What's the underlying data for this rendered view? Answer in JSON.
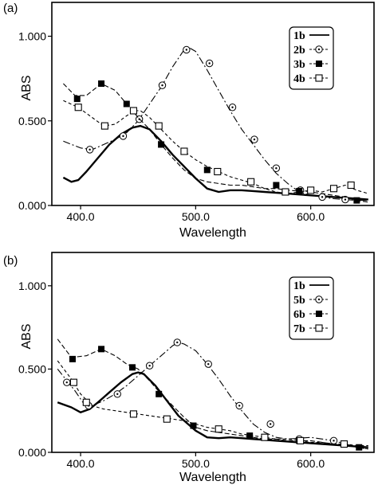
{
  "chart_data": [
    {
      "type": "line",
      "panel_label": "(a)",
      "title": "",
      "xlabel": "Wavelength",
      "ylabel": "ABS",
      "xlim": [
        375,
        655
      ],
      "ylim": [
        0,
        1.2
      ],
      "xticks": [
        400,
        500,
        600
      ],
      "xtick_labels": [
        "400.0",
        "500.0",
        "600.0"
      ],
      "yticks": [
        0,
        0.5,
        1.0
      ],
      "ytick_labels": [
        "0.000",
        "0.500",
        "1.000"
      ],
      "grid": false,
      "legend_position": "top-right",
      "series": [
        {
          "name": "1b",
          "style": "solid-bold",
          "x": [
            385,
            392,
            398,
            405,
            415,
            425,
            435,
            445,
            452,
            460,
            470,
            480,
            490,
            500,
            510,
            520,
            530,
            540,
            550,
            560,
            570,
            580,
            590,
            600,
            610,
            620,
            630,
            640,
            650
          ],
          "y": [
            0.165,
            0.14,
            0.15,
            0.2,
            0.28,
            0.36,
            0.42,
            0.46,
            0.47,
            0.45,
            0.38,
            0.3,
            0.23,
            0.16,
            0.1,
            0.08,
            0.09,
            0.09,
            0.085,
            0.08,
            0.075,
            0.07,
            0.065,
            0.06,
            0.055,
            0.05,
            0.045,
            0.04,
            0.035
          ],
          "marker_x": [],
          "marker_y": []
        },
        {
          "name": "2b",
          "style": "dashdot-circle",
          "x": [
            385,
            400,
            410,
            420,
            430,
            440,
            450,
            460,
            470,
            480,
            490,
            495,
            500,
            510,
            520,
            530,
            540,
            550,
            560,
            570,
            580,
            590,
            600,
            610,
            620,
            630,
            640,
            650
          ],
          "y": [
            0.38,
            0.34,
            0.33,
            0.36,
            0.39,
            0.43,
            0.5,
            0.6,
            0.7,
            0.82,
            0.92,
            0.93,
            0.91,
            0.8,
            0.68,
            0.56,
            0.45,
            0.36,
            0.27,
            0.19,
            0.13,
            0.08,
            0.06,
            0.05,
            0.04,
            0.035,
            0.03,
            0.03
          ],
          "marker_x": [
            408,
            437,
            451,
            471,
            492,
            512,
            532,
            551,
            570,
            591,
            610,
            630
          ],
          "marker_y": [
            0.33,
            0.41,
            0.51,
            0.71,
            0.92,
            0.84,
            0.58,
            0.39,
            0.22,
            0.09,
            0.05,
            0.035
          ]
        },
        {
          "name": "3b",
          "style": "dashed-filled-square",
          "x": [
            385,
            395,
            405,
            418,
            430,
            440,
            450,
            460,
            470,
            480,
            490,
            500,
            510,
            520,
            530,
            540,
            550,
            560,
            570,
            580,
            590,
            600,
            610,
            620,
            630,
            640,
            650
          ],
          "y": [
            0.72,
            0.65,
            0.65,
            0.72,
            0.68,
            0.6,
            0.52,
            0.45,
            0.36,
            0.28,
            0.21,
            0.16,
            0.14,
            0.13,
            0.12,
            0.12,
            0.11,
            0.1,
            0.1,
            0.09,
            0.085,
            0.08,
            0.07,
            0.06,
            0.05,
            0.03,
            0.02
          ],
          "marker_x": [
            397,
            418,
            440,
            470,
            510,
            570,
            590,
            640
          ],
          "marker_y": [
            0.63,
            0.72,
            0.6,
            0.36,
            0.21,
            0.12,
            0.085,
            0.03
          ]
        },
        {
          "name": "4b",
          "style": "dashed-open-square",
          "x": [
            385,
            398,
            410,
            420,
            430,
            440,
            447,
            452,
            460,
            470,
            480,
            490,
            500,
            510,
            520,
            530,
            540,
            550,
            560,
            570,
            580,
            590,
            600,
            610,
            620,
            630,
            640,
            650
          ],
          "y": [
            0.62,
            0.58,
            0.52,
            0.47,
            0.48,
            0.53,
            0.56,
            0.56,
            0.52,
            0.45,
            0.38,
            0.32,
            0.27,
            0.23,
            0.2,
            0.17,
            0.15,
            0.13,
            0.1,
            0.08,
            0.07,
            0.08,
            0.09,
            0.08,
            0.1,
            0.12,
            0.09,
            0.07
          ],
          "marker_x": [
            398,
            421,
            446,
            468,
            490,
            519,
            548,
            578,
            600,
            620,
            635
          ],
          "marker_y": [
            0.58,
            0.47,
            0.56,
            0.47,
            0.32,
            0.2,
            0.14,
            0.08,
            0.09,
            0.1,
            0.12
          ]
        }
      ]
    },
    {
      "type": "line",
      "panel_label": "(b)",
      "title": "",
      "xlabel": "Wavelength",
      "ylabel": "ABS",
      "xlim": [
        375,
        655
      ],
      "ylim": [
        0,
        1.2
      ],
      "xticks": [
        400,
        500,
        600
      ],
      "xtick_labels": [
        "400.0",
        "500.0",
        "600.0"
      ],
      "yticks": [
        0,
        0.5,
        1.0
      ],
      "ytick_labels": [
        "0.000",
        "0.500",
        "1.000"
      ],
      "grid": false,
      "legend_position": "top-right",
      "series": [
        {
          "name": "1b",
          "style": "solid-bold",
          "x": [
            380,
            392,
            400,
            408,
            415,
            425,
            435,
            445,
            450,
            455,
            465,
            475,
            485,
            495,
            500,
            510,
            520,
            530,
            540,
            550,
            560,
            570,
            580,
            590,
            600,
            610,
            620,
            630,
            640,
            650
          ],
          "y": [
            0.3,
            0.27,
            0.24,
            0.26,
            0.3,
            0.36,
            0.42,
            0.47,
            0.48,
            0.47,
            0.4,
            0.31,
            0.22,
            0.16,
            0.13,
            0.09,
            0.085,
            0.09,
            0.085,
            0.08,
            0.075,
            0.07,
            0.065,
            0.06,
            0.055,
            0.05,
            0.045,
            0.04,
            0.035,
            0.03
          ],
          "marker_x": [],
          "marker_y": []
        },
        {
          "name": "5b",
          "style": "dashdot-circle",
          "x": [
            380,
            395,
            402,
            410,
            420,
            430,
            440,
            450,
            460,
            470,
            480,
            485,
            490,
            500,
            510,
            520,
            530,
            540,
            550,
            560,
            570,
            580,
            590,
            600,
            610,
            620,
            630,
            640,
            650
          ],
          "y": [
            0.5,
            0.37,
            0.3,
            0.28,
            0.31,
            0.35,
            0.4,
            0.46,
            0.52,
            0.58,
            0.64,
            0.66,
            0.65,
            0.61,
            0.53,
            0.44,
            0.34,
            0.25,
            0.17,
            0.12,
            0.09,
            0.08,
            0.085,
            0.09,
            0.08,
            0.07,
            0.05,
            0.03,
            0.02
          ],
          "marker_x": [
            388,
            407,
            432,
            460,
            484,
            511,
            538,
            565,
            590,
            620
          ],
          "marker_y": [
            0.42,
            0.28,
            0.35,
            0.52,
            0.66,
            0.53,
            0.28,
            0.17,
            0.08,
            0.07
          ]
        },
        {
          "name": "6b",
          "style": "dashed-filled-square",
          "x": [
            380,
            392,
            405,
            418,
            430,
            440,
            450,
            460,
            470,
            480,
            490,
            500,
            510,
            520,
            530,
            540,
            550,
            560,
            570,
            580,
            590,
            600,
            610,
            620,
            630,
            640,
            650
          ],
          "y": [
            0.68,
            0.57,
            0.58,
            0.62,
            0.58,
            0.53,
            0.5,
            0.43,
            0.35,
            0.28,
            0.21,
            0.15,
            0.13,
            0.12,
            0.11,
            0.1,
            0.09,
            0.08,
            0.08,
            0.07,
            0.07,
            0.07,
            0.06,
            0.05,
            0.05,
            0.03,
            0.02
          ],
          "marker_x": [
            393,
            418,
            445,
            468,
            498,
            547,
            590,
            642
          ],
          "marker_y": [
            0.56,
            0.62,
            0.51,
            0.35,
            0.16,
            0.1,
            0.07,
            0.03
          ]
        },
        {
          "name": "7b",
          "style": "dashed-open-square",
          "x": [
            380,
            392,
            400,
            410,
            420,
            430,
            440,
            450,
            460,
            470,
            480,
            490,
            500,
            510,
            520,
            530,
            540,
            550,
            560,
            570,
            580,
            590,
            600,
            610,
            620,
            630,
            640,
            650
          ],
          "y": [
            0.55,
            0.44,
            0.35,
            0.28,
            0.26,
            0.25,
            0.24,
            0.23,
            0.22,
            0.21,
            0.2,
            0.19,
            0.17,
            0.15,
            0.14,
            0.13,
            0.11,
            0.1,
            0.09,
            0.08,
            0.08,
            0.07,
            0.06,
            0.06,
            0.05,
            0.05,
            0.04,
            0.04
          ],
          "marker_x": [
            394,
            405,
            446,
            475,
            520,
            560,
            591,
            629
          ],
          "marker_y": [
            0.42,
            0.3,
            0.23,
            0.2,
            0.14,
            0.09,
            0.07,
            0.05
          ]
        }
      ]
    }
  ]
}
